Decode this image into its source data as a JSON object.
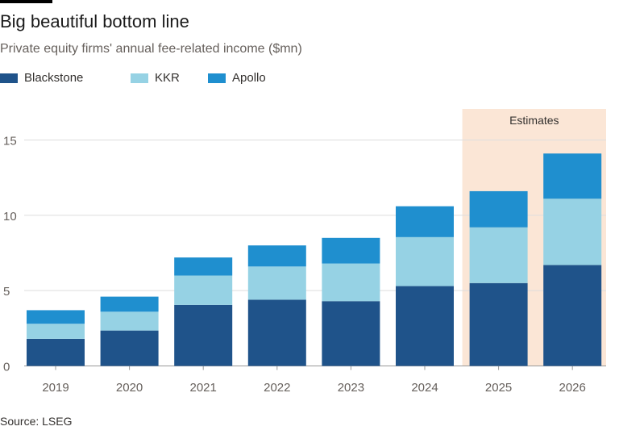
{
  "chart_data": {
    "type": "bar",
    "stacked": true,
    "title": "Big beautiful bottom line",
    "subtitle": "Private equity firms' annual fee-related income ($mn)",
    "categories": [
      "2019",
      "2020",
      "2021",
      "2022",
      "2023",
      "2024",
      "2025",
      "2026"
    ],
    "series": [
      {
        "name": "Blackstone",
        "color": "#1f538a",
        "values": [
          1.8,
          2.35,
          4.05,
          4.4,
          4.3,
          5.3,
          5.5,
          6.7
        ]
      },
      {
        "name": "KKR",
        "color": "#96d2e4",
        "values": [
          1.0,
          1.25,
          1.95,
          2.2,
          2.5,
          3.25,
          3.7,
          4.4
        ]
      },
      {
        "name": "Apollo",
        "color": "#1f8fcf",
        "values": [
          0.9,
          1.0,
          1.2,
          1.4,
          1.7,
          2.05,
          2.4,
          3.0
        ]
      }
    ],
    "ylim": [
      0,
      16
    ],
    "yticks": [
      0,
      5,
      10,
      15
    ],
    "grid": true,
    "legend": "top-left",
    "annotation": {
      "label": "Estimates",
      "categories": [
        "2025",
        "2026"
      ],
      "color": "#fbe6d6"
    },
    "source": "Source: LSEG"
  }
}
